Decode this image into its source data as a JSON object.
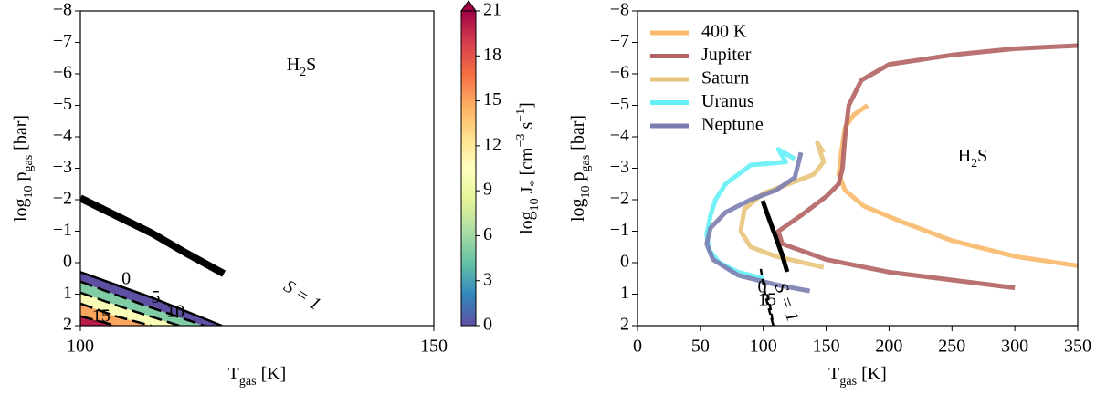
{
  "chart_data": [
    {
      "type": "contour",
      "title": {
        "parts": [
          "H",
          {
            "text": "2",
            "pos": "sub"
          },
          "S"
        ]
      },
      "xlabel": {
        "parts": [
          "T",
          {
            "text": "gas",
            "pos": "sub"
          },
          " [K]"
        ]
      },
      "ylabel": {
        "parts": [
          "log",
          {
            "text": "10",
            "pos": "sub"
          },
          " p",
          {
            "text": "gas",
            "pos": "sub"
          },
          " [bar]"
        ]
      },
      "xlim": [
        100,
        150
      ],
      "xticks": [
        100,
        150
      ],
      "ylim": [
        2,
        -8
      ],
      "yticks": [
        {
          "value": -8,
          "label": "−8"
        },
        {
          "value": -7,
          "label": "−7"
        },
        {
          "value": -6,
          "label": "−6"
        },
        {
          "value": -5,
          "label": "−5"
        },
        {
          "value": -4,
          "label": "−4"
        },
        {
          "value": -3,
          "label": "−3"
        },
        {
          "value": -2,
          "label": "−2"
        },
        {
          "value": -1,
          "label": "−1"
        },
        0,
        1,
        2
      ],
      "contours": [
        {
          "level": 0,
          "x": [
            100,
            110,
            120
          ],
          "y": [
            0.3,
            1.1,
            2
          ]
        },
        {
          "level": 5,
          "x": [
            100,
            109,
            117.5
          ],
          "y": [
            0.6,
            1.35,
            2
          ]
        },
        {
          "level": 10,
          "x": [
            100,
            107,
            114
          ],
          "y": [
            0.95,
            1.5,
            2
          ]
        },
        {
          "level": 15,
          "x": [
            100,
            105,
            110
          ],
          "y": [
            1.3,
            1.7,
            2
          ]
        },
        {
          "level": 20,
          "x": [
            100,
            102.5,
            105
          ],
          "y": [
            1.7,
            1.85,
            2
          ]
        }
      ],
      "supersaturation_line": {
        "x": [
          100,
          105,
          110,
          115,
          120.3
        ],
        "y": [
          -2.05,
          -1.5,
          -0.95,
          -0.3,
          0.35
        ]
      },
      "annotation": "S = 1",
      "colorbar": {
        "label": {
          "parts": [
            "log",
            {
              "text": "10",
              "pos": "sub"
            },
            " J",
            {
              "text": "*",
              "pos": "sub"
            },
            " [cm",
            {
              "text": "−3",
              "pos": "sup"
            },
            " s",
            {
              "text": "−1",
              "pos": "sup"
            },
            "]"
          ]
        },
        "lim": [
          0,
          21
        ],
        "ticks": [
          0,
          3,
          6,
          9,
          12,
          15,
          18,
          21
        ],
        "colormap": [
          "#5e4fa2",
          "#3288bd",
          "#66c2a5",
          "#abdda4",
          "#e6f598",
          "#ffffbf",
          "#fee08b",
          "#fdae61",
          "#f46d43",
          "#d53e4f",
          "#9e0142"
        ]
      }
    },
    {
      "type": "line",
      "title": {
        "parts": [
          "H",
          {
            "text": "2",
            "pos": "sub"
          },
          "S"
        ]
      },
      "xlabel": {
        "parts": [
          "T",
          {
            "text": "gas",
            "pos": "sub"
          },
          " [K]"
        ]
      },
      "ylabel": {
        "parts": [
          "log",
          {
            "text": "10",
            "pos": "sub"
          },
          " p",
          {
            "text": "gas",
            "pos": "sub"
          },
          " [bar]"
        ]
      },
      "xlim": [
        0,
        350
      ],
      "xticks": [
        0,
        50,
        100,
        150,
        200,
        250,
        300,
        350
      ],
      "ylim": [
        2,
        -8
      ],
      "yticks": [
        {
          "value": -8,
          "label": "−8"
        },
        {
          "value": -7,
          "label": "−7"
        },
        {
          "value": -6,
          "label": "−6"
        },
        {
          "value": -5,
          "label": "−5"
        },
        {
          "value": -4,
          "label": "−4"
        },
        {
          "value": -3,
          "label": "−3"
        },
        {
          "value": -2,
          "label": "−2"
        },
        {
          "value": -1,
          "label": "−1"
        },
        0,
        1,
        2
      ],
      "legend": "upper left",
      "series": [
        {
          "name": "400 K",
          "color": "#f8b96c",
          "x": [
            183,
            172,
            165,
            162,
            160,
            165,
            180,
            210,
            250,
            300,
            350
          ],
          "values": [
            -5,
            -4.7,
            -4.3,
            -3.5,
            -2.8,
            -2.3,
            -1.8,
            -1.3,
            -0.7,
            -0.2,
            0.1
          ]
        },
        {
          "name": "Jupiter",
          "color": "#b16262",
          "x": [
            350,
            300,
            250,
            200,
            178,
            168,
            165,
            163,
            160,
            150,
            130,
            112,
            115,
            150,
            200,
            250,
            300
          ],
          "values": [
            -6.9,
            -6.8,
            -6.6,
            -6.3,
            -5.8,
            -5,
            -4,
            -3,
            -2.5,
            -2.1,
            -1.5,
            -1.0,
            -0.6,
            -0.1,
            0.3,
            0.55,
            0.8
          ]
        },
        {
          "name": "Saturn",
          "color": "#e8c47c",
          "x": [
            148,
            143,
            148,
            140,
            120,
            100,
            85,
            82,
            90,
            110,
            148
          ],
          "values": [
            -3.5,
            -3.8,
            -3.2,
            -2.8,
            -2.5,
            -2.2,
            -1.7,
            -1.0,
            -0.5,
            -0.2,
            0.15
          ]
        },
        {
          "name": "Uranus",
          "color": "#64f0f6",
          "x": [
            125,
            112,
            118,
            90,
            70,
            62,
            58,
            55,
            57,
            65,
            80,
            100
          ],
          "values": [
            -3.3,
            -3.6,
            -3.2,
            -3.1,
            -2.5,
            -2,
            -1.5,
            -0.9,
            -0.4,
            0,
            0.3,
            0.5
          ]
        },
        {
          "name": "Neptune",
          "color": "#7b7db0",
          "x": [
            130,
            125,
            110,
            90,
            70,
            58,
            55,
            60,
            80,
            110,
            137
          ],
          "values": [
            -3.5,
            -2.7,
            -2.3,
            -2,
            -1.6,
            -1.1,
            -0.6,
            -0.1,
            0.4,
            0.7,
            0.9
          ]
        }
      ],
      "supersaturation_line": {
        "x": [
          99.5,
          105,
          110,
          115,
          119
        ],
        "y": [
          -1.97,
          -1.35,
          -0.8,
          -0.25,
          0.29
        ]
      },
      "contours": [
        {
          "level": 0,
          "x": [
            98,
            102,
            108
          ],
          "y": [
            0.2,
            1.1,
            2
          ]
        },
        {
          "level": 15,
          "x": [
            103,
            106,
            108
          ],
          "y": [
            1.0,
            1.5,
            2
          ]
        }
      ],
      "annotation": "S = 1"
    }
  ]
}
